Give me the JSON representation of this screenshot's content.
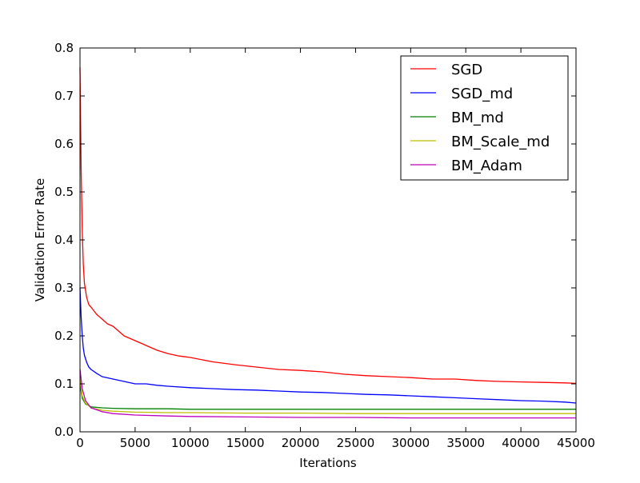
{
  "chart_data": {
    "type": "line",
    "title": "",
    "xlabel": "Iterations",
    "ylabel": "Validation Error Rate",
    "xlim": [
      0,
      45000
    ],
    "ylim": [
      0.0,
      0.8
    ],
    "xticks": [
      0,
      5000,
      10000,
      15000,
      20000,
      25000,
      30000,
      35000,
      40000,
      45000
    ],
    "yticks": [
      0.0,
      0.1,
      0.2,
      0.3,
      0.4,
      0.5,
      0.6,
      0.7,
      0.8
    ],
    "xtick_labels": [
      "0",
      "5000",
      "10000",
      "15000",
      "20000",
      "25000",
      "30000",
      "35000",
      "40000",
      "45000"
    ],
    "ytick_labels": [
      "0.0",
      "0.1",
      "0.2",
      "0.3",
      "0.4",
      "0.5",
      "0.6",
      "0.7",
      "0.8"
    ],
    "grid": false,
    "legend_position": "top-right",
    "series": [
      {
        "name": "SGD",
        "color": "#ff0000",
        "x": [
          0,
          100,
          200,
          300,
          400,
          600,
          800,
          1000,
          1500,
          2000,
          2500,
          3000,
          3500,
          4000,
          4500,
          5000,
          6000,
          7000,
          8000,
          9000,
          10000,
          12000,
          14000,
          16000,
          18000,
          20000,
          22000,
          24000,
          26000,
          28000,
          30000,
          32000,
          34000,
          36000,
          38000,
          40000,
          42000,
          44000,
          45000
        ],
        "y": [
          0.76,
          0.55,
          0.42,
          0.35,
          0.31,
          0.28,
          0.265,
          0.26,
          0.245,
          0.235,
          0.225,
          0.22,
          0.21,
          0.2,
          0.195,
          0.19,
          0.18,
          0.17,
          0.163,
          0.158,
          0.155,
          0.146,
          0.14,
          0.135,
          0.13,
          0.128,
          0.125,
          0.12,
          0.117,
          0.115,
          0.113,
          0.11,
          0.11,
          0.107,
          0.105,
          0.104,
          0.103,
          0.102,
          0.101
        ]
      },
      {
        "name": "SGD_md",
        "color": "#0000ff",
        "x": [
          0,
          100,
          200,
          300,
          400,
          600,
          800,
          1000,
          1500,
          2000,
          3000,
          4000,
          5000,
          6000,
          7000,
          8000,
          10000,
          12000,
          14000,
          16000,
          18000,
          20000,
          22000,
          24000,
          26000,
          28000,
          30000,
          32000,
          34000,
          36000,
          38000,
          40000,
          42000,
          44000,
          45000
        ],
        "y": [
          0.3,
          0.24,
          0.2,
          0.175,
          0.16,
          0.145,
          0.135,
          0.13,
          0.122,
          0.115,
          0.11,
          0.105,
          0.1,
          0.1,
          0.097,
          0.095,
          0.092,
          0.09,
          0.088,
          0.087,
          0.085,
          0.083,
          0.082,
          0.08,
          0.078,
          0.077,
          0.075,
          0.073,
          0.071,
          0.069,
          0.067,
          0.065,
          0.064,
          0.062,
          0.06
        ]
      },
      {
        "name": "BM_md",
        "color": "#008000",
        "x": [
          0,
          200,
          500,
          1000,
          2000,
          3000,
          5000,
          8000,
          10000,
          15000,
          20000,
          25000,
          30000,
          35000,
          40000,
          45000
        ],
        "y": [
          0.1,
          0.07,
          0.058,
          0.052,
          0.05,
          0.049,
          0.048,
          0.048,
          0.047,
          0.047,
          0.047,
          0.047,
          0.047,
          0.047,
          0.047,
          0.047
        ]
      },
      {
        "name": "BM_Scale_md",
        "color": "#bfbf00",
        "x": [
          0,
          200,
          500,
          1000,
          2000,
          3000,
          5000,
          8000,
          10000,
          15000,
          20000,
          25000,
          30000,
          35000,
          40000,
          45000
        ],
        "y": [
          0.11,
          0.075,
          0.06,
          0.05,
          0.045,
          0.043,
          0.041,
          0.04,
          0.04,
          0.039,
          0.039,
          0.038,
          0.038,
          0.038,
          0.038,
          0.038
        ]
      },
      {
        "name": "BM_Adam",
        "color": "#bf00bf",
        "x": [
          0,
          200,
          500,
          1000,
          2000,
          3000,
          5000,
          8000,
          10000,
          15000,
          20000,
          25000,
          30000,
          35000,
          40000,
          45000
        ],
        "y": [
          0.13,
          0.09,
          0.065,
          0.05,
          0.042,
          0.038,
          0.035,
          0.033,
          0.032,
          0.031,
          0.03,
          0.03,
          0.029,
          0.029,
          0.029,
          0.029
        ]
      }
    ]
  }
}
